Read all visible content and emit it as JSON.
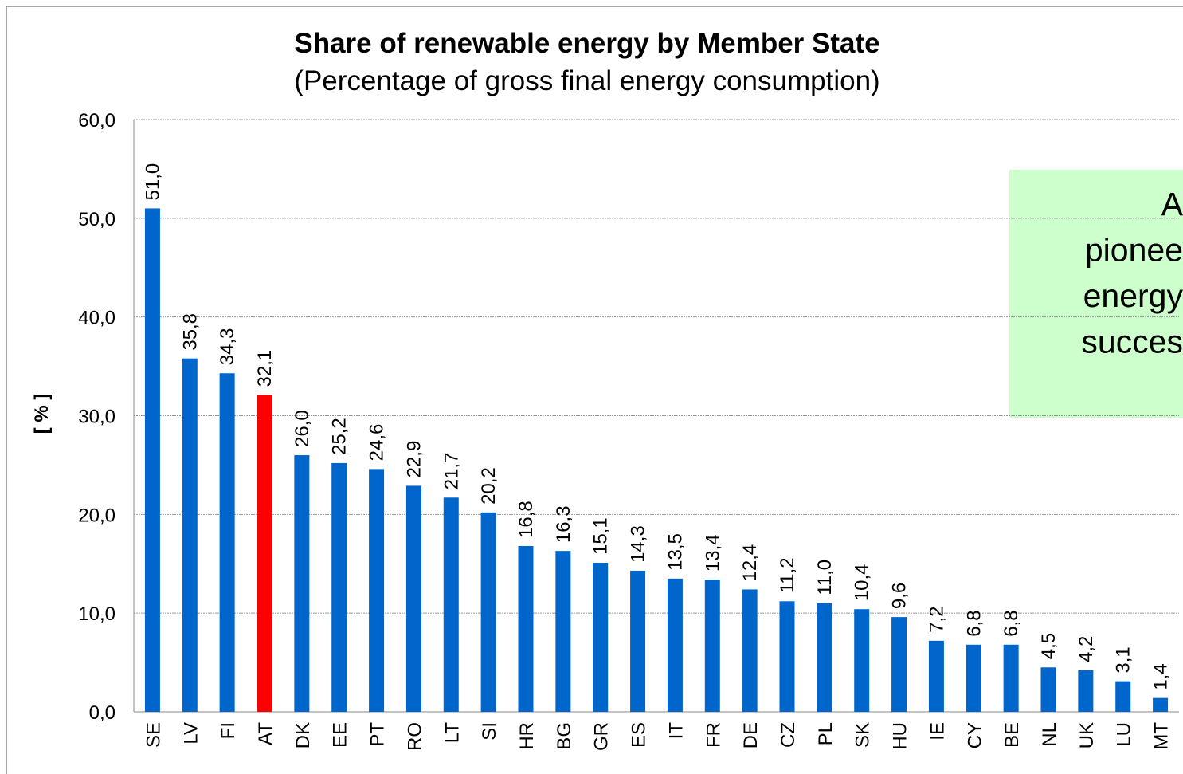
{
  "chart_data": {
    "type": "bar",
    "title": "Share of renewable energy by Member State",
    "subtitle": "(Percentage of gross final energy consumption)",
    "y_label": "[ % ]",
    "categories": [
      "SE",
      "LV",
      "FI",
      "AT",
      "DK",
      "EE",
      "PT",
      "RO",
      "LT",
      "SI",
      "HR",
      "BG",
      "GR",
      "ES",
      "IT",
      "FR",
      "DE",
      "CZ",
      "PL",
      "SK",
      "HU",
      "IE",
      "CY",
      "BE",
      "NL",
      "UK",
      "LU",
      "MT"
    ],
    "values": [
      51.0,
      35.8,
      34.3,
      32.1,
      26.0,
      25.2,
      24.6,
      22.9,
      21.7,
      20.2,
      16.8,
      16.3,
      15.1,
      14.3,
      13.5,
      13.4,
      12.4,
      11.2,
      11.0,
      10.4,
      9.6,
      7.2,
      6.8,
      6.8,
      4.5,
      4.2,
      3.1,
      1.4
    ],
    "value_labels": [
      "51,0",
      "35,8",
      "34,3",
      "32,1",
      "26,0",
      "25,2",
      "24,6",
      "22,9",
      "21,7",
      "20,2",
      "16,8",
      "16,3",
      "15,1",
      "14,3",
      "13,5",
      "13,4",
      "12,4",
      "11,2",
      "11,0",
      "10,4",
      "9,6",
      "7,2",
      "6,8",
      "6,8",
      "4,5",
      "4,2",
      "3,1",
      "1,4"
    ],
    "colors": [
      "#0066cc",
      "#0066cc",
      "#0066cc",
      "#ff0000",
      "#0066cc",
      "#0066cc",
      "#0066cc",
      "#0066cc",
      "#0066cc",
      "#0066cc",
      "#0066cc",
      "#0066cc",
      "#0066cc",
      "#0066cc",
      "#0066cc",
      "#0066cc",
      "#0066cc",
      "#0066cc",
      "#0066cc",
      "#0066cc",
      "#0066cc",
      "#0066cc",
      "#0066cc",
      "#0066cc",
      "#0066cc",
      "#0066cc",
      "#0066cc",
      "#0066cc"
    ],
    "ylim": [
      0,
      60
    ],
    "yticks": [
      {
        "value": 0,
        "label": "0,0"
      },
      {
        "value": 10,
        "label": "10,0"
      },
      {
        "value": 20,
        "label": "20,0"
      },
      {
        "value": 30,
        "label": "30,0"
      },
      {
        "value": 40,
        "label": "40,0"
      },
      {
        "value": 50,
        "label": "50,0"
      },
      {
        "value": 60,
        "label": "60,0"
      }
    ],
    "grid": true,
    "annotation": [
      "A",
      "pionee",
      "energy",
      "succes"
    ]
  }
}
